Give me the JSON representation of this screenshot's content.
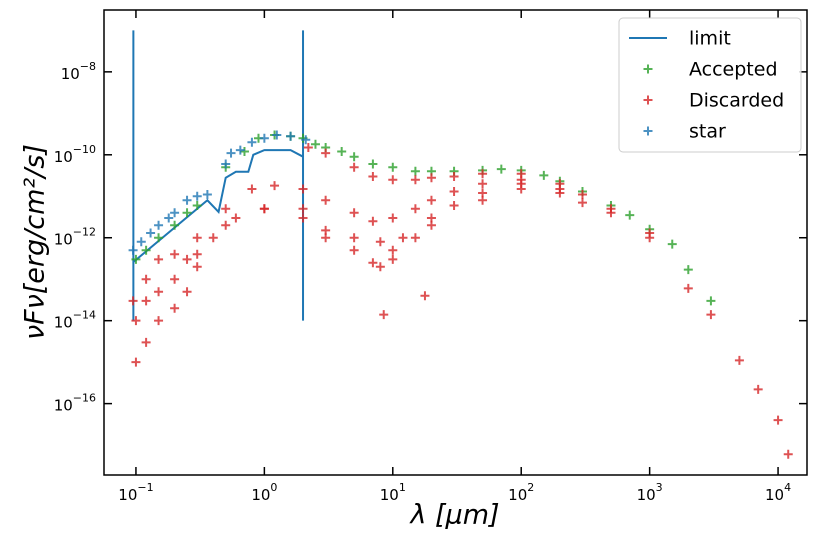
{
  "chart_data": {
    "type": "scatter",
    "xlabel": "λ [μm]",
    "ylabel": "νFν[erg/cm²/s]",
    "xscale": "log",
    "yscale": "log",
    "xlim": [
      0.0564,
      16800
    ],
    "ylim": [
      1.9e-18,
      3.1e-07
    ],
    "xticks": [
      {
        "value": 0.1,
        "label": "10−1"
      },
      {
        "value": 1,
        "label": "100"
      },
      {
        "value": 10,
        "label": "101"
      },
      {
        "value": 100,
        "label": "102"
      },
      {
        "value": 1000,
        "label": "103"
      },
      {
        "value": 10000,
        "label": "104"
      }
    ],
    "yticks": [
      {
        "value": 1e-16,
        "label": "10−16"
      },
      {
        "value": 1e-14,
        "label": "10−14"
      },
      {
        "value": 1e-12,
        "label": "10−12"
      },
      {
        "value": 1e-10,
        "label": "10−10"
      },
      {
        "value": 1e-08,
        "label": "10−8"
      }
    ],
    "legend": "upper right",
    "series": [
      {
        "name": "limit",
        "kind": "line",
        "color": "#1f77b4",
        "x": [
          0.0955,
          0.0955,
          null,
          0.0955,
          0.36,
          0.44,
          0.5,
          0.6,
          0.75,
          0.82,
          1.0,
          1.6,
          2.0,
          null,
          2.0,
          2.0
        ],
        "values": [
          1e-14,
          1e-07,
          null,
          2.6e-13,
          8e-12,
          4.2e-12,
          2.8e-11,
          3.9e-11,
          3.9e-11,
          1e-10,
          1.3e-10,
          1.3e-10,
          9e-11,
          null,
          1e-14,
          1e-07
        ]
      },
      {
        "name": "Accepted",
        "kind": "scatter",
        "color": "#2ca02c",
        "x": [
          0.1,
          0.12,
          0.15,
          0.2,
          0.25,
          0.3,
          0.5,
          0.7,
          0.9,
          1.2,
          1.6,
          2.0,
          2.5,
          3,
          4,
          5,
          7,
          10,
          15,
          20,
          30,
          50,
          70,
          100,
          150,
          200,
          300,
          500,
          700,
          1000,
          1500,
          2000,
          3000
        ],
        "values": [
          3e-13,
          5e-13,
          1e-12,
          2e-12,
          4e-12,
          6e-12,
          5e-11,
          1.2e-10,
          2.5e-10,
          3e-10,
          2.8e-10,
          2.5e-10,
          1.8e-10,
          1.5e-10,
          1.2e-10,
          9e-11,
          6e-11,
          5e-11,
          4e-11,
          4e-11,
          4e-11,
          4.2e-11,
          4.5e-11,
          4.2e-11,
          3.2e-11,
          2.3e-11,
          1.3e-11,
          6e-12,
          3.5e-12,
          1.6e-12,
          7e-13,
          1.7e-13,
          3e-14
        ]
      },
      {
        "name": "Discarded",
        "kind": "scatter",
        "color": "#d62728",
        "x": [
          2.2,
          3,
          5,
          7,
          10,
          15,
          20,
          30,
          50,
          100,
          200,
          300,
          500,
          1000,
          2000,
          3000,
          5000,
          7000,
          10000,
          12000,
          0.095,
          0.12,
          0.15,
          0.2,
          0.25,
          0.3,
          0.5,
          0.8,
          1.2,
          2,
          3,
          5,
          7,
          8,
          10,
          15,
          20,
          30,
          50,
          100,
          200,
          500,
          1000,
          0.1,
          0.12,
          0.15,
          0.2,
          0.25,
          0.3,
          0.4,
          0.6,
          1,
          2,
          3,
          5,
          7,
          8.5,
          10,
          15,
          20,
          30,
          50,
          100,
          200,
          300,
          0.1,
          0.12,
          0.15,
          0.2,
          0.3,
          0.5,
          1,
          2,
          3,
          5,
          8,
          10,
          12,
          17.8,
          20,
          50,
          100
        ],
        "values": [
          1.5e-10,
          1.1e-10,
          5e-11,
          3e-11,
          2.5e-11,
          2.5e-11,
          2.8e-11,
          3e-11,
          3.5e-11,
          3.5e-11,
          2e-11,
          1.1e-11,
          5e-12,
          1.3e-12,
          6e-14,
          1.4e-14,
          1.1e-15,
          2.2e-16,
          4e-17,
          6e-18,
          3e-14,
          1e-13,
          3e-13,
          4e-13,
          3e-13,
          1e-12,
          5e-12,
          1.5e-11,
          1.8e-11,
          1.5e-11,
          8e-12,
          4e-12,
          2.5e-12,
          8e-13,
          3e-12,
          5e-12,
          8e-12,
          1.3e-11,
          2e-11,
          2.5e-11,
          1.5e-11,
          4e-12,
          1e-12,
          1e-15,
          3e-15,
          1e-14,
          2e-14,
          5e-14,
          2e-13,
          1e-12,
          3e-12,
          5e-12,
          3e-12,
          1e-12,
          5e-13,
          2.5e-13,
          1.4e-14,
          3e-13,
          1e-12,
          3e-12,
          6e-12,
          1.2e-11,
          2e-11,
          1.2e-11,
          7e-12,
          1e-14,
          3e-14,
          5e-14,
          1e-13,
          4e-13,
          2e-12,
          5e-12,
          5e-12,
          1.5e-12,
          1e-12,
          2e-13,
          5e-13,
          1e-12,
          4e-14,
          2e-12,
          8e-12,
          1.5e-11
        ]
      },
      {
        "name": "star",
        "kind": "scatter",
        "color": "#1f77b4",
        "x": [
          0.095,
          0.11,
          0.13,
          0.15,
          0.18,
          0.2,
          0.25,
          0.3,
          0.36,
          0.5,
          0.55,
          0.65,
          0.8,
          1.0,
          1.25,
          1.6,
          2.1
        ],
        "values": [
          5e-13,
          8e-13,
          1.3e-12,
          2e-12,
          3e-12,
          4e-12,
          8e-12,
          1e-11,
          1.1e-11,
          6e-11,
          1.1e-10,
          1.3e-10,
          2e-10,
          2.5e-10,
          3e-10,
          2.8e-10,
          2.3e-10
        ]
      }
    ]
  }
}
